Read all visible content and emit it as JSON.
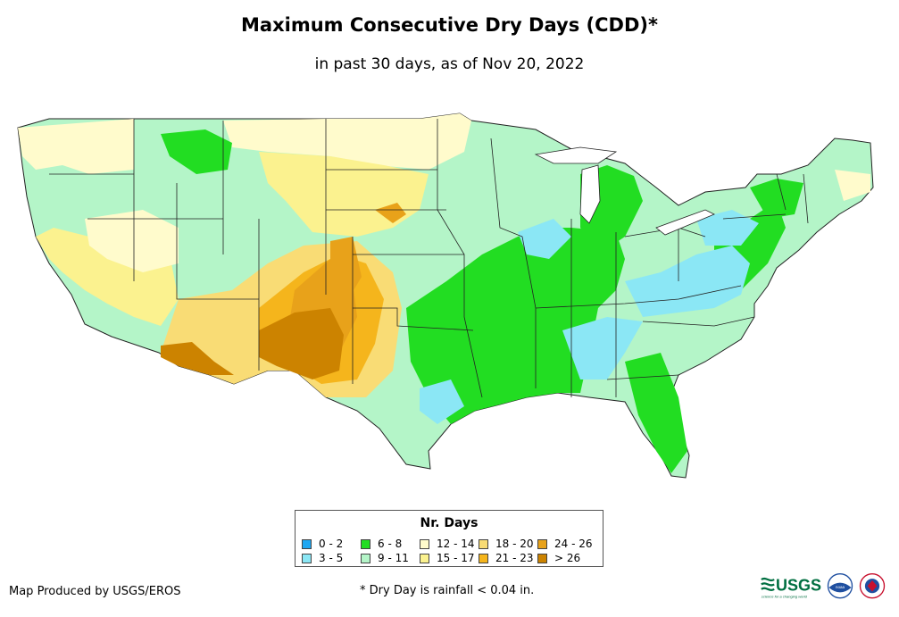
{
  "title": "Maximum Consecutive Dry Days (CDD)*",
  "subtitle": "in past 30 days, as of Nov 20, 2022",
  "legend": {
    "title": "Nr. Days",
    "items": [
      {
        "label": "0 - 2",
        "color": "#1ea7f2"
      },
      {
        "label": "3 - 5",
        "color": "#8be7f5"
      },
      {
        "label": "6 - 8",
        "color": "#22dd22"
      },
      {
        "label": "9 - 11",
        "color": "#b4f5c8"
      },
      {
        "label": "12 - 14",
        "color": "#fffbcc"
      },
      {
        "label": "15 - 17",
        "color": "#fbf28f"
      },
      {
        "label": "18 - 20",
        "color": "#f9dc75"
      },
      {
        "label": "21 - 23",
        "color": "#f5b51c"
      },
      {
        "label": "24 - 26",
        "color": "#e8a21a"
      },
      {
        "label": "> 26",
        "color": "#cc8300"
      }
    ]
  },
  "credit": "Map Produced by USGS/EROS",
  "footnote": "* Dry Day is rainfall < 0.04 in.",
  "logos": {
    "usgs_text": "USGS",
    "usgs_tagline": "science for a changing world",
    "noaa_text": "noaa"
  }
}
